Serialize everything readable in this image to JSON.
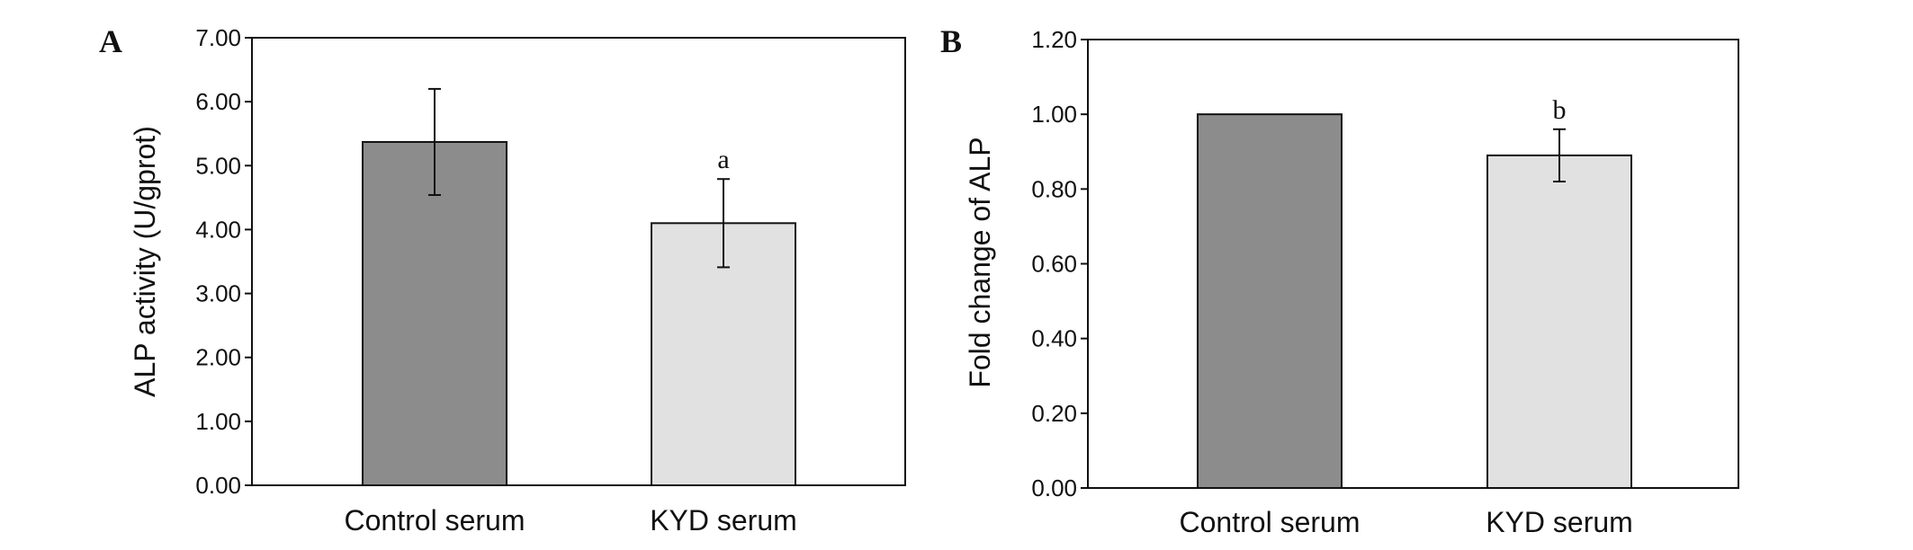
{
  "chart_data": [
    {
      "type": "bar",
      "panel_label": "A",
      "categories": [
        "Control serum",
        "KYD serum"
      ],
      "values": [
        5.37,
        4.1
      ],
      "errors": [
        0.83,
        0.69
      ],
      "annotations": [
        "",
        "a"
      ],
      "colors": [
        "#8c8c8c",
        "#e1e1e1"
      ],
      "ylabel": "ALP activity  (U/gprot)",
      "ylim": [
        0,
        7
      ],
      "yticks": [
        "0.00",
        "1.00",
        "2.00",
        "3.00",
        "4.00",
        "5.00",
        "6.00",
        "7.00"
      ],
      "grid": false
    },
    {
      "type": "bar",
      "panel_label": "B",
      "categories": [
        "Control serum",
        "KYD serum"
      ],
      "values": [
        1.0,
        0.89
      ],
      "errors": [
        0,
        0.07
      ],
      "annotations": [
        "",
        "b"
      ],
      "colors": [
        "#8c8c8c",
        "#e1e1e1"
      ],
      "ylabel": "Fold change of ALP",
      "ylim": [
        0,
        1.2
      ],
      "yticks": [
        "0.00",
        "0.20",
        "0.40",
        "0.60",
        "0.80",
        "1.00",
        "1.20"
      ],
      "grid": false
    }
  ]
}
